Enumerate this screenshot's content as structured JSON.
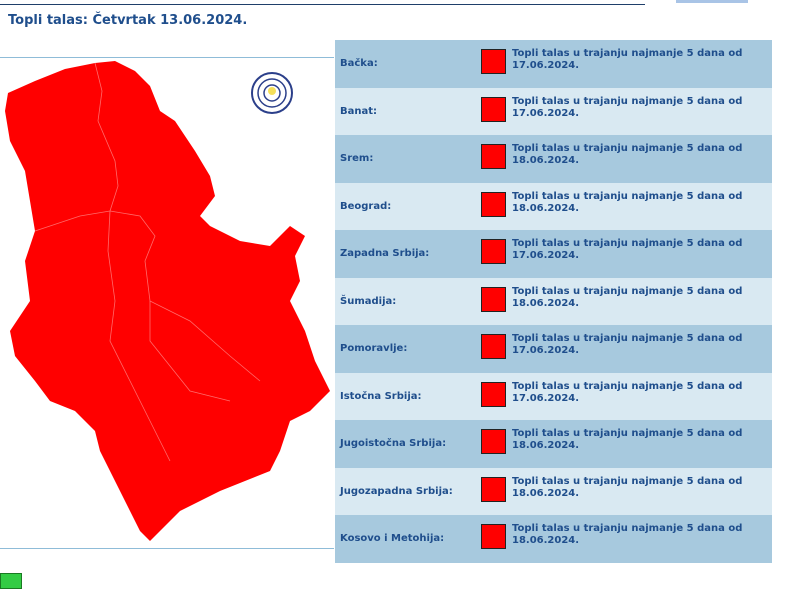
{
  "title": "Topli talas: Četvrtak  13.06.2024.",
  "colors": {
    "warning": "#ff0000",
    "row_dark": "#a7c9de",
    "row_light": "#d9e9f2",
    "text": "#1f4e8c"
  },
  "regions": [
    {
      "name": "Bačka:",
      "text": "Topli talas u trajanju najmanje 5 dana od 17.06.2024."
    },
    {
      "name": "Banat:",
      "text": "Topli talas u trajanju najmanje 5 dana od 17.06.2024."
    },
    {
      "name": "Srem:",
      "text": "Topli talas u trajanju najmanje 5 dana od 18.06.2024."
    },
    {
      "name": "Beograd:",
      "text": "Topli talas u trajanju najmanje 5 dana od 18.06.2024."
    },
    {
      "name": "Zapadna Srbija:",
      "text": "Topli talas u trajanju najmanje 5 dana od 17.06.2024."
    },
    {
      "name": "Šumadija:",
      "text": "Topli talas u trajanju najmanje 5 dana od 18.06.2024."
    },
    {
      "name": "Pomoravlje:",
      "text": "Topli talas u trajanju najmanje 5 dana od 17.06.2024."
    },
    {
      "name": "Istočna Srbija:",
      "text": "Topli talas u trajanju najmanje 5 dana od 17.06.2024."
    },
    {
      "name": "Jugoistočna Srbija:",
      "text": "Topli talas u trajanju najmanje 5 dana od 18.06.2024."
    },
    {
      "name": "Jugozapadna Srbija:",
      "text": "Topli talas u trajanju najmanje 5 dana od 18.06.2024."
    },
    {
      "name": "Kosovo i Metohija:",
      "text": "Topli talas u trajanju najmanje 5 dana od 18.06.2024."
    }
  ]
}
